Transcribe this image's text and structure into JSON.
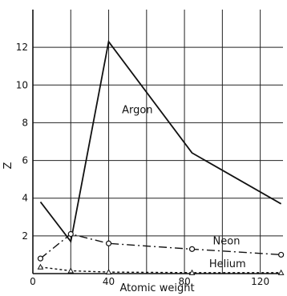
{
  "chart_data": {
    "type": "line",
    "title": "",
    "xlabel": "Atomic weight",
    "ylabel": "Z",
    "xlim": [
      0,
      132
    ],
    "ylim": [
      0,
      14
    ],
    "xticks": [
      0,
      20,
      40,
      60,
      80,
      100,
      120
    ],
    "xtick_labels": [
      "0",
      "",
      "40",
      "",
      "80",
      "",
      "120"
    ],
    "yticks": [
      2,
      4,
      6,
      8,
      10,
      12
    ],
    "grid": true,
    "legend": "none",
    "series": [
      {
        "name": "Argon",
        "marker": "none",
        "linestyle": "solid",
        "x": [
          4,
          20,
          40,
          84,
          131
        ],
        "y": [
          3.8,
          1.7,
          12.3,
          6.4,
          3.7
        ],
        "label_pos": [
          47,
          8.5
        ]
      },
      {
        "name": "Neon",
        "marker": "circle",
        "linestyle": "dashdot",
        "x": [
          4,
          20,
          40,
          84,
          131
        ],
        "y": [
          0.8,
          2.1,
          1.6,
          1.3,
          1.0
        ],
        "label_pos": [
          95,
          1.55
        ]
      },
      {
        "name": "Helium",
        "marker": "triangle",
        "linestyle": "dotted",
        "x": [
          4,
          20,
          40,
          84,
          131
        ],
        "y": [
          0.35,
          0.15,
          0.08,
          0.05,
          0.05
        ],
        "label_pos": [
          93,
          0.35
        ]
      }
    ],
    "colors": {
      "line": "#111111",
      "grid": "#222222",
      "background": "#ffffff"
    }
  }
}
